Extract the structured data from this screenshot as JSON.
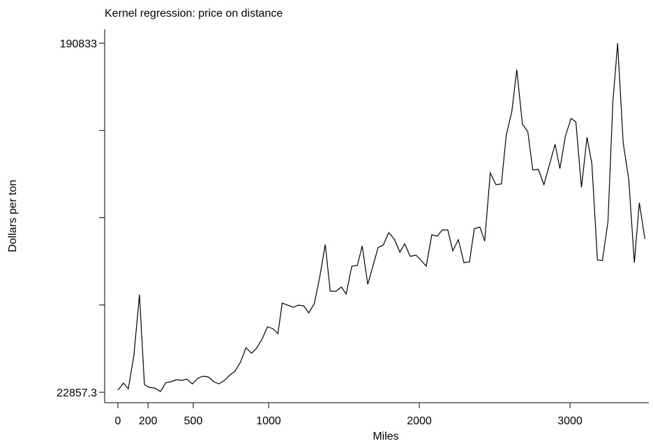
{
  "chart_data": {
    "type": "line",
    "title": "Kernel regression: price on distance",
    "xlabel": "Miles",
    "ylabel": "Dollars per ton",
    "xlim": [
      -88,
      3523
    ],
    "ylim": [
      17828,
      197539
    ],
    "xticks": [
      0,
      200,
      500,
      1000,
      2000,
      3000
    ],
    "yticks": [
      22857.3,
      190833
    ],
    "ytick_marks": [
      64851.2,
      106845.2,
      148839.1
    ],
    "series": [
      {
        "color": "#000000",
        "x": [
          0,
          37,
          69,
          106,
          143,
          176,
          208,
          245,
          282,
          319,
          351,
          388,
          425,
          457,
          494,
          531,
          564,
          600,
          637,
          670,
          707,
          744,
          776,
          813,
          850,
          887,
          919,
          956,
          993,
          1030,
          1062,
          1090,
          1127,
          1164,
          1196,
          1233,
          1266,
          1303,
          1339,
          1376,
          1409,
          1446,
          1483,
          1515,
          1552,
          1589,
          1621,
          1658,
          1691,
          1727,
          1760,
          1797,
          1834,
          1871,
          1903,
          1940,
          1977,
          2009,
          2046,
          2083,
          2120,
          2152,
          2189,
          2222,
          2259,
          2296,
          2333,
          2365,
          2402,
          2434,
          2471,
          2508,
          2545,
          2577,
          2614,
          2647,
          2684,
          2720,
          2753,
          2790,
          2827,
          2864,
          2901,
          2933,
          2970,
          3007,
          3039,
          3076,
          3113,
          3145,
          3182,
          3215,
          3252,
          3284,
          3316,
          3353,
          3390,
          3427,
          3460,
          3497
        ],
        "values": [
          23863,
          27216,
          24534,
          40628,
          69799,
          26545,
          25204,
          24869,
          23193,
          27551,
          27887,
          28892,
          28557,
          29228,
          26881,
          29563,
          30569,
          30234,
          27887,
          26881,
          28557,
          31240,
          32916,
          37275,
          44316,
          41634,
          43981,
          48340,
          54375,
          53369,
          51022,
          65775,
          64770,
          63764,
          64770,
          64434,
          61081,
          65440,
          78182,
          93941,
          71476,
          71476,
          73487,
          70134,
          83546,
          83882,
          93270,
          74829,
          83211,
          92599,
          93605,
          99641,
          96623,
          90252,
          94276,
          88241,
          88911,
          86564,
          83546,
          98635,
          97964,
          100982,
          100982,
          90923,
          96288,
          85223,
          85558,
          101653,
          102323,
          95617,
          128477,
          122776,
          123112,
          146583,
          157983,
          178101,
          151948,
          148259,
          129818,
          130153,
          122776,
          132500,
          142224,
          130488,
          146247,
          154630,
          152953,
          121435,
          145577,
          132835,
          86564,
          86229,
          105006,
          162007,
          190833,
          142894,
          125124,
          85223,
          114059,
          96623
        ]
      }
    ]
  }
}
